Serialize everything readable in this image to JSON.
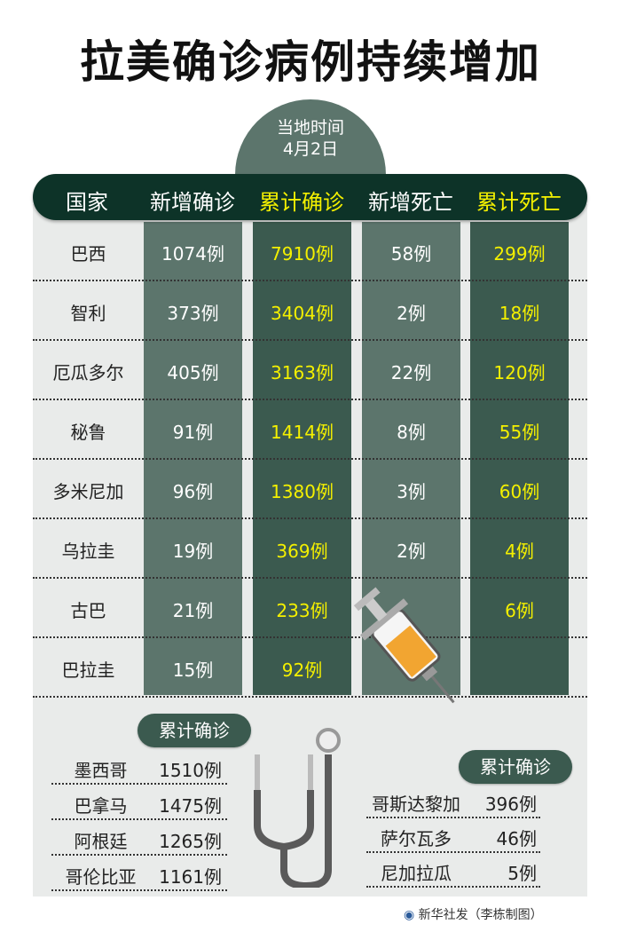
{
  "title": "拉美确诊病例持续增加",
  "date_badge": {
    "line1": "当地时间",
    "line2": "4月2日"
  },
  "headers": [
    "国家",
    "新增确诊",
    "累计确诊",
    "新增死亡",
    "累计死亡"
  ],
  "rows": [
    {
      "country": "巴西",
      "new_cases": "1074例",
      "total_cases": "7910例",
      "new_deaths": "58例",
      "total_deaths": "299例"
    },
    {
      "country": "智利",
      "new_cases": "373例",
      "total_cases": "3404例",
      "new_deaths": "2例",
      "total_deaths": "18例"
    },
    {
      "country": "厄瓜多尔",
      "new_cases": "405例",
      "total_cases": "3163例",
      "new_deaths": "22例",
      "total_deaths": "120例"
    },
    {
      "country": "秘鲁",
      "new_cases": "91例",
      "total_cases": "1414例",
      "new_deaths": "8例",
      "total_deaths": "55例"
    },
    {
      "country": "多米尼加",
      "new_cases": "96例",
      "total_cases": "1380例",
      "new_deaths": "3例",
      "total_deaths": "60例"
    },
    {
      "country": "乌拉圭",
      "new_cases": "19例",
      "total_cases": "369例",
      "new_deaths": "2例",
      "total_deaths": "4例"
    },
    {
      "country": "古巴",
      "new_cases": "21例",
      "total_cases": "233例",
      "new_deaths": "",
      "total_deaths": "6例"
    },
    {
      "country": "巴拉圭",
      "new_cases": "15例",
      "total_cases": "92例",
      "new_deaths": "",
      "total_deaths": ""
    }
  ],
  "left_list": {
    "label": "累计确诊",
    "items": [
      {
        "country": "墨西哥",
        "value": "1510例"
      },
      {
        "country": "巴拿马",
        "value": "1475例"
      },
      {
        "country": "阿根廷",
        "value": "1265例"
      },
      {
        "country": "哥伦比亚",
        "value": "1161例"
      }
    ]
  },
  "right_list": {
    "label": "累计确诊",
    "items": [
      {
        "country": "哥斯达黎加",
        "value": "396例"
      },
      {
        "country": "萨尔瓦多",
        "value": "46例"
      },
      {
        "country": "尼加拉瓜",
        "value": "5例"
      }
    ]
  },
  "credit": "新华社发（李栋制图）",
  "colors": {
    "header": "#0d3328",
    "column_light": "#5c756c",
    "column_dark": "#3b5a4f",
    "highlight": "#f4f000",
    "panel": "#e9ebea"
  }
}
